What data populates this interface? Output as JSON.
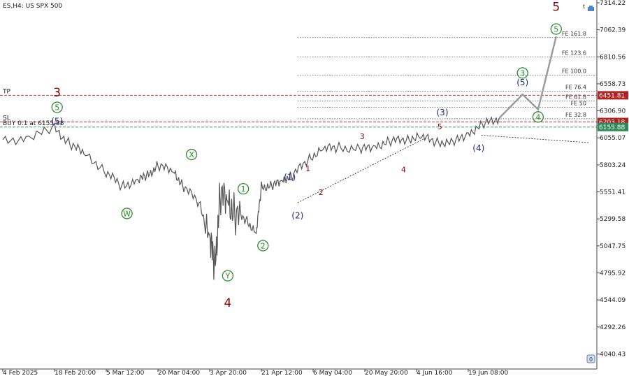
{
  "header": {
    "symbol": "ES,H4: US SPX 500"
  },
  "chart_data": {
    "type": "line",
    "ylim": [
      3900,
      7314.22
    ],
    "y_ticks": [
      "7314.22",
      "7062.39",
      "6810.56",
      "6558.73",
      "6306.90",
      "6055.07",
      "5803.24",
      "5551.41",
      "5299.58",
      "5047.75",
      "4795.92",
      "4544.09",
      "4292.26",
      "4040.43"
    ],
    "x_ticks": [
      "4 Feb 2025",
      "18 Feb 20:00",
      "5 Mar 12:00",
      "20 Mar 04:00",
      "3 Apr 20:00",
      "21 Apr 12:00",
      "6 May 04:00",
      "20 May 20:00",
      "4 Jun 16:00",
      "19 Jun 08:00"
    ],
    "x_tick_index": [
      0,
      1,
      2,
      3,
      4,
      5,
      6,
      7,
      8,
      9
    ],
    "price_series": {
      "name": "",
      "x": [
        0,
        0.5,
        1.0,
        1.3,
        1.6,
        2.0,
        2.3,
        2.6,
        2.8,
        3.0,
        3.3,
        3.5,
        3.8,
        4.0,
        4.1,
        4.2,
        4.35,
        4.5,
        4.7,
        4.9,
        5.0,
        5.2,
        5.4,
        5.6,
        5.9,
        6.2,
        6.5,
        6.9,
        7.2,
        7.5,
        7.8,
        8.1,
        8.4,
        8.7,
        9.0,
        9.3,
        9.6
      ],
      "y": [
        6020,
        6060,
        6140,
        6000,
        5900,
        5740,
        5600,
        5660,
        5700,
        5800,
        5740,
        5600,
        5450,
        5120,
        4850,
        5500,
        5480,
        5340,
        5300,
        5160,
        5600,
        5600,
        5660,
        5700,
        5860,
        5950,
        5970,
        5940,
        5980,
        6020,
        6050,
        6060,
        6020,
        6000,
        6100,
        6180,
        6240
      ]
    },
    "projection": {
      "x": [
        9.6,
        10.05,
        10.35,
        10.7
      ],
      "y": [
        6240,
        6460,
        6320,
        7000
      ]
    },
    "levels": [
      {
        "label": "FE 161.8",
        "value": 6990
      },
      {
        "label": "FE 123.6",
        "value": 6810
      },
      {
        "label": "FE 100.0",
        "value": 6640
      },
      {
        "label": "FE 76.4",
        "value": 6490
      },
      {
        "label": "FE 61.8",
        "value": 6400
      },
      {
        "label": "FE 50",
        "value": 6340
      },
      {
        "label": "FE 32.8",
        "value": 6233
      }
    ],
    "tp": {
      "label": "TP",
      "value": 6451.81,
      "price_label": "6451.81",
      "color": "#b22222"
    },
    "sl": {
      "label": "SL",
      "value": 6203.18,
      "price_label": "6203.18",
      "color": "#b22222"
    },
    "buy": {
      "label": "BUY 0.1 at 6155.88",
      "value": 6155.88,
      "price_label": "6155.88",
      "color": "#2e8b57"
    },
    "wave_labels": [
      {
        "text": "5",
        "x": 10.7,
        "y": 7280,
        "color": "#8b0000",
        "style": "big"
      },
      {
        "text": "5",
        "x": 10.7,
        "y": 7070,
        "color": "#2e8b2e",
        "style": "circle"
      },
      {
        "text": "3",
        "x": 1.05,
        "y": 6480,
        "color": "#8b0000",
        "style": "big"
      },
      {
        "text": "5",
        "x": 1.05,
        "y": 6340,
        "color": "#2e8b2e",
        "style": "circle"
      },
      {
        "text": "(5)",
        "x": 1.05,
        "y": 6210,
        "color": "#1f2a7a",
        "style": "paren"
      },
      {
        "text": "X",
        "x": 3.65,
        "y": 5900,
        "color": "#2e8b2e",
        "style": "circle"
      },
      {
        "text": "W",
        "x": 2.4,
        "y": 5350,
        "color": "#2e8b2e",
        "style": "circle"
      },
      {
        "text": "1",
        "x": 4.65,
        "y": 5580,
        "color": "#2e8b2e",
        "style": "circle"
      },
      {
        "text": "2",
        "x": 5.03,
        "y": 5050,
        "color": "#2e8b2e",
        "style": "circle"
      },
      {
        "text": "Y",
        "x": 4.35,
        "y": 4770,
        "color": "#2e8b2e",
        "style": "circle"
      },
      {
        "text": "4",
        "x": 4.35,
        "y": 4520,
        "color": "#8b0000",
        "style": "big"
      },
      {
        "text": "(1)",
        "x": 5.55,
        "y": 5690,
        "color": "#1f2a7a",
        "style": "paren"
      },
      {
        "text": "(2)",
        "x": 5.7,
        "y": 5330,
        "color": "#1f2a7a",
        "style": "paren"
      },
      {
        "text": "1",
        "x": 5.9,
        "y": 5770,
        "color": "#8b0000",
        "style": "small"
      },
      {
        "text": "2",
        "x": 6.15,
        "y": 5550,
        "color": "#8b0000",
        "style": "small"
      },
      {
        "text": "3",
        "x": 6.95,
        "y": 6070,
        "color": "#8b0000",
        "style": "small"
      },
      {
        "text": "4",
        "x": 7.75,
        "y": 5760,
        "color": "#8b0000",
        "style": "small"
      },
      {
        "text": "5",
        "x": 8.45,
        "y": 6160,
        "color": "#8b0000",
        "style": "small"
      },
      {
        "text": "(3)",
        "x": 8.5,
        "y": 6290,
        "color": "#1f2a7a",
        "style": "paren"
      },
      {
        "text": "(4)",
        "x": 9.2,
        "y": 5960,
        "color": "#1f2a7a",
        "style": "paren"
      },
      {
        "text": "(5)",
        "x": 10.05,
        "y": 6570,
        "color": "#1f2a7a",
        "style": "paren"
      },
      {
        "text": "3",
        "x": 10.05,
        "y": 6660,
        "color": "#2e8b2e",
        "style": "circle"
      },
      {
        "text": "4",
        "x": 10.35,
        "y": 6250,
        "color": "#2e8b2e",
        "style": "circle"
      }
    ],
    "trendline": {
      "x": [
        5.7,
        8.2
      ],
      "y": [
        5450,
        6060
      ]
    },
    "channel": {
      "x": [
        9.25,
        11.35
      ],
      "y": [
        6080,
        6010
      ]
    }
  }
}
